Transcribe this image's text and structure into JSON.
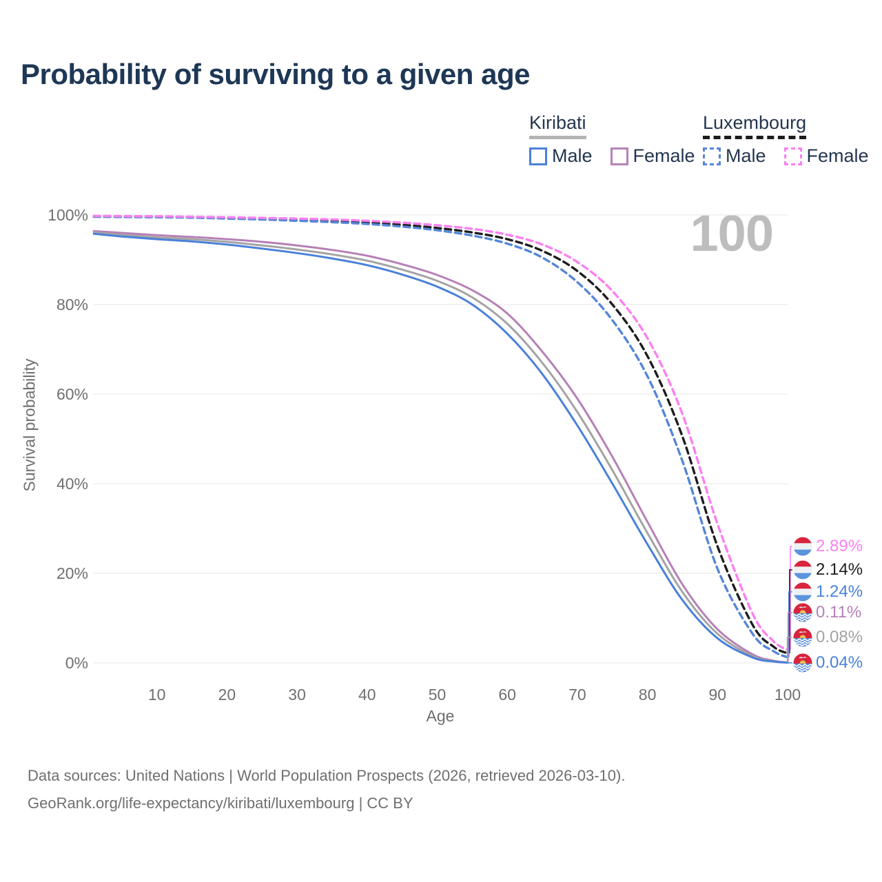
{
  "title": "Probability of surviving to a given age",
  "watermark": "100",
  "legend": {
    "groups": [
      {
        "country": "Kiribati",
        "style": "solid",
        "items": [
          {
            "label": "Male",
            "color": "#4a80d9"
          },
          {
            "label": "Female",
            "color": "#b680b6"
          }
        ]
      },
      {
        "country": "Luxembourg",
        "style": "dashed",
        "items": [
          {
            "label": "Male",
            "color": "#5586d8"
          },
          {
            "label": "Female",
            "color": "#fb80f0"
          }
        ]
      }
    ]
  },
  "chart_data": {
    "type": "line",
    "title": "Probability of surviving to a given age",
    "xlabel": "Age",
    "ylabel": "Survival probability",
    "xlim": [
      1,
      100
    ],
    "ylim": [
      0,
      100
    ],
    "x_ticks": [
      10,
      20,
      30,
      40,
      50,
      60,
      70,
      80,
      90,
      100
    ],
    "y_ticks": [
      0,
      20,
      40,
      60,
      80,
      100
    ],
    "grid": "horizontal",
    "legend_position": "top-right",
    "current_age_indicator": 100,
    "series": [
      {
        "id": "kiribati-female",
        "name": "Kiribati Female",
        "country": "Kiribati",
        "sex": "female",
        "color": "#b680b6",
        "dash": false,
        "points": [
          [
            1,
            96.4
          ],
          [
            5,
            96
          ],
          [
            10,
            95.5
          ],
          [
            15,
            95.1
          ],
          [
            20,
            94.6
          ],
          [
            25,
            94
          ],
          [
            30,
            93.2
          ],
          [
            35,
            92.2
          ],
          [
            40,
            90.9
          ],
          [
            45,
            89
          ],
          [
            50,
            86.6
          ],
          [
            55,
            83.2
          ],
          [
            60,
            78
          ],
          [
            65,
            69.5
          ],
          [
            70,
            59
          ],
          [
            75,
            46
          ],
          [
            80,
            31.5
          ],
          [
            85,
            17.5
          ],
          [
            90,
            7.5
          ],
          [
            95,
            1.9
          ],
          [
            98,
            0.5
          ],
          [
            100,
            0.11
          ]
        ]
      },
      {
        "id": "kiribati-both",
        "name": "Kiribati Both sexes",
        "country": "Kiribati",
        "sex": "both",
        "color": "#a3a3a3",
        "dash": false,
        "points": [
          [
            1,
            96.1
          ],
          [
            5,
            95.6
          ],
          [
            10,
            95
          ],
          [
            15,
            94.6
          ],
          [
            20,
            94
          ],
          [
            25,
            93.2
          ],
          [
            30,
            92.3
          ],
          [
            35,
            91.2
          ],
          [
            40,
            89.8
          ],
          [
            45,
            87.8
          ],
          [
            50,
            85.3
          ],
          [
            55,
            81.6
          ],
          [
            60,
            75.7
          ],
          [
            65,
            67
          ],
          [
            70,
            56
          ],
          [
            75,
            43
          ],
          [
            80,
            29
          ],
          [
            85,
            15.8
          ],
          [
            90,
            6.5
          ],
          [
            95,
            1.5
          ],
          [
            98,
            0.4
          ],
          [
            100,
            0.08
          ]
        ]
      },
      {
        "id": "kiribati-male",
        "name": "Kiribati Male",
        "country": "Kiribati",
        "sex": "male",
        "color": "#4a80d9",
        "dash": false,
        "points": [
          [
            1,
            95.8
          ],
          [
            5,
            95.2
          ],
          [
            10,
            94.6
          ],
          [
            15,
            94.1
          ],
          [
            20,
            93.4
          ],
          [
            25,
            92.5
          ],
          [
            30,
            91.5
          ],
          [
            35,
            90.3
          ],
          [
            40,
            88.8
          ],
          [
            45,
            86.7
          ],
          [
            50,
            84
          ],
          [
            55,
            80
          ],
          [
            60,
            73.5
          ],
          [
            65,
            64.5
          ],
          [
            70,
            53
          ],
          [
            75,
            40
          ],
          [
            80,
            26.5
          ],
          [
            85,
            14
          ],
          [
            90,
            5.5
          ],
          [
            95,
            1.2
          ],
          [
            98,
            0.3
          ],
          [
            100,
            0.04
          ]
        ]
      },
      {
        "id": "luxembourg-both",
        "name": "Luxembourg Both sexes",
        "country": "Luxembourg",
        "sex": "both",
        "color": "#1d1d1d",
        "dash": true,
        "points": [
          [
            1,
            99.7
          ],
          [
            5,
            99.65
          ],
          [
            10,
            99.6
          ],
          [
            15,
            99.5
          ],
          [
            20,
            99.3
          ],
          [
            25,
            99.1
          ],
          [
            30,
            98.9
          ],
          [
            35,
            98.6
          ],
          [
            40,
            98.3
          ],
          [
            45,
            97.8
          ],
          [
            50,
            97.1
          ],
          [
            55,
            96.1
          ],
          [
            60,
            94.6
          ],
          [
            65,
            92
          ],
          [
            70,
            87.5
          ],
          [
            75,
            80
          ],
          [
            80,
            68.5
          ],
          [
            85,
            50.5
          ],
          [
            90,
            26
          ],
          [
            95,
            8.5
          ],
          [
            98,
            3.6
          ],
          [
            100,
            2.14
          ]
        ]
      },
      {
        "id": "luxembourg-male",
        "name": "Luxembourg Male",
        "country": "Luxembourg",
        "sex": "male",
        "color": "#5586d8",
        "dash": true,
        "points": [
          [
            1,
            99.6
          ],
          [
            5,
            99.55
          ],
          [
            10,
            99.5
          ],
          [
            15,
            99.4
          ],
          [
            20,
            99.2
          ],
          [
            25,
            99
          ],
          [
            30,
            98.7
          ],
          [
            35,
            98.4
          ],
          [
            40,
            98
          ],
          [
            45,
            97.4
          ],
          [
            50,
            96.6
          ],
          [
            55,
            95.4
          ],
          [
            60,
            93.6
          ],
          [
            65,
            90.5
          ],
          [
            70,
            85
          ],
          [
            75,
            76.5
          ],
          [
            80,
            64
          ],
          [
            85,
            45
          ],
          [
            90,
            21
          ],
          [
            95,
            6.5
          ],
          [
            98,
            2.6
          ],
          [
            100,
            1.24
          ]
        ]
      },
      {
        "id": "luxembourg-female",
        "name": "Luxembourg Female",
        "country": "Luxembourg",
        "sex": "female",
        "color": "#fb80f0",
        "dash": true,
        "points": [
          [
            1,
            99.8
          ],
          [
            5,
            99.75
          ],
          [
            10,
            99.7
          ],
          [
            15,
            99.6
          ],
          [
            20,
            99.5
          ],
          [
            25,
            99.35
          ],
          [
            30,
            99.2
          ],
          [
            35,
            99
          ],
          [
            40,
            98.7
          ],
          [
            45,
            98.3
          ],
          [
            50,
            97.7
          ],
          [
            55,
            96.9
          ],
          [
            60,
            95.6
          ],
          [
            65,
            93.4
          ],
          [
            70,
            89.5
          ],
          [
            75,
            83
          ],
          [
            80,
            72.5
          ],
          [
            85,
            55.5
          ],
          [
            90,
            31
          ],
          [
            95,
            11
          ],
          [
            98,
            4.8
          ],
          [
            100,
            2.89
          ]
        ]
      }
    ],
    "end_labels": [
      {
        "text": "2.89%",
        "value": 2.89,
        "color": "#fb80f0",
        "flag": "luxembourg",
        "series": "Luxembourg Female"
      },
      {
        "text": "2.14%",
        "value": 2.14,
        "color": "#1d1d1d",
        "flag": "luxembourg",
        "series": "Luxembourg Both sexes"
      },
      {
        "text": "1.24%",
        "value": 1.24,
        "color": "#4a80d9",
        "flag": "luxembourg",
        "series": "Luxembourg Male"
      },
      {
        "text": "0.11%",
        "value": 0.11,
        "color": "#b680b6",
        "flag": "kiribati",
        "series": "Kiribati Female"
      },
      {
        "text": "0.08%",
        "value": 0.08,
        "color": "#a3a3a3",
        "flag": "kiribati",
        "series": "Kiribati Both sexes"
      },
      {
        "text": "0.04%",
        "value": 0.04,
        "color": "#4a80d9",
        "flag": "kiribati",
        "series": "Kiribati Male"
      }
    ]
  },
  "footer": {
    "line1": "Data sources: United Nations | World Population Prospects (2026, retrieved 2026-03-10).",
    "line2": "GeoRank.org/life-expectancy/kiribati/luxembourg | CC BY"
  }
}
